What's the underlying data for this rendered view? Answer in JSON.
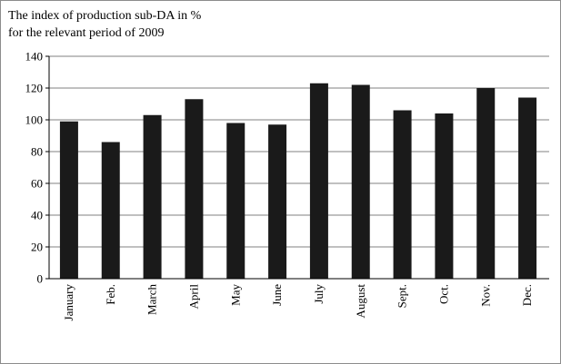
{
  "chart_data": {
    "type": "bar",
    "title_lines": [
      "The index of production sub-DA in %",
      "for the relevant period of 2009"
    ],
    "categories": [
      "January",
      "Feb.",
      "March",
      "April",
      "May",
      "June",
      "July",
      "August",
      "Sept.",
      "Oct.",
      "Nov.",
      "Dec."
    ],
    "values": [
      99,
      86,
      103,
      113,
      98,
      97,
      123,
      122,
      106,
      104,
      120,
      114
    ],
    "ylim": [
      0,
      140
    ],
    "yticks": [
      0,
      20,
      40,
      60,
      80,
      100,
      120,
      140
    ],
    "grid": true,
    "bar_color": "#1a1a1a",
    "grid_color": "#808080"
  }
}
